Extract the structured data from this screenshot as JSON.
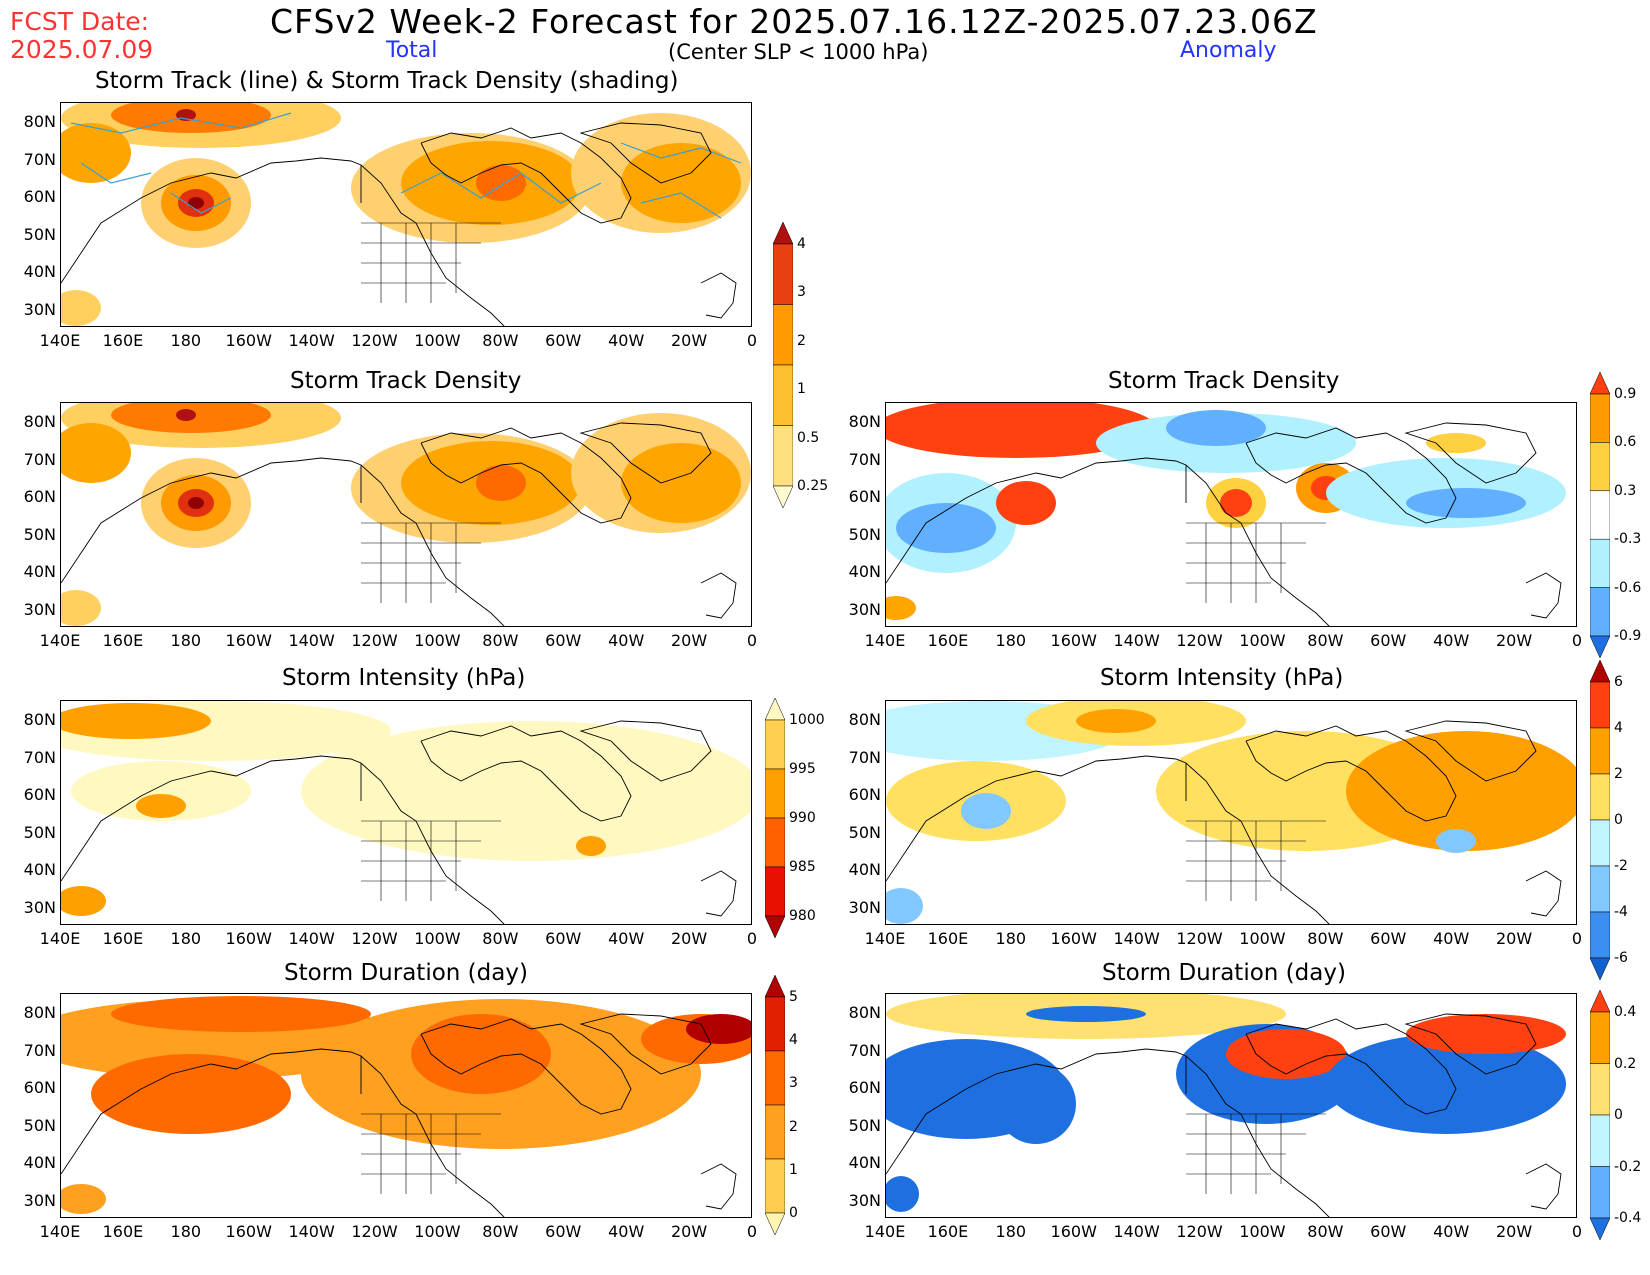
{
  "header": {
    "fcst_label": "FCST Date:",
    "fcst_date": "2025.07.09",
    "title": "CFSv2 Week-2 Forecast for 2025.07.16.12Z-2025.07.23.06Z",
    "col_total": "Total",
    "col_anomaly": "Anomaly",
    "criterion": "(Center SLP < 1000 hPa)"
  },
  "lat_ticks": [
    "80N",
    "70N",
    "60N",
    "50N",
    "40N",
    "30N"
  ],
  "lon_ticks": [
    "140E",
    "160E",
    "180",
    "160W",
    "140W",
    "120W",
    "100W",
    "80W",
    "60W",
    "40W",
    "20W",
    "0"
  ],
  "panels": [
    {
      "id": "p1",
      "title": "Storm Track (line) & Storm Track Density (shading)",
      "field": "total-density",
      "tracks": true
    },
    {
      "id": "p2",
      "title": "Storm Track Density",
      "field": "total-density"
    },
    {
      "id": "p3",
      "title": "Storm Track Density",
      "field": "anom-density"
    },
    {
      "id": "p4",
      "title": "Storm Intensity (hPa)",
      "field": "total-intensity"
    },
    {
      "id": "p5",
      "title": "Storm Intensity (hPa)",
      "field": "anom-intensity"
    },
    {
      "id": "p6",
      "title": "Storm Duration (day)",
      "field": "total-duration"
    },
    {
      "id": "p7",
      "title": "Storm Duration (day)",
      "field": "anom-duration"
    }
  ],
  "colorbars": [
    {
      "id": "cb1",
      "labels": [
        "4",
        "3",
        "2",
        "1",
        "0.5",
        "0.25"
      ],
      "colors": [
        "#b01010",
        "#e84010",
        "#ff9a00",
        "#ffc030",
        "#ffe080",
        "#fffad0"
      ]
    },
    {
      "id": "cb2",
      "labels": [
        "0.9",
        "0.6",
        "0.3",
        "-0.3",
        "-0.6",
        "-0.9"
      ],
      "colors": [
        "#ff4010",
        "#ff9a00",
        "#ffd040",
        "#ffffff",
        "#b0f0ff",
        "#60b0ff",
        "#1e70e0"
      ]
    },
    {
      "id": "cb3",
      "labels": [
        "1000",
        "995",
        "990",
        "985",
        "980"
      ],
      "colors": [
        "#fff8c0",
        "#ffd050",
        "#ffa000",
        "#ff6000",
        "#e81000",
        "#b00000"
      ]
    },
    {
      "id": "cb4",
      "labels": [
        "6",
        "4",
        "2",
        "0",
        "-2",
        "-4",
        "-6"
      ],
      "colors": [
        "#b00000",
        "#ff4010",
        "#ffa000",
        "#ffe060",
        "#c0f4ff",
        "#80c8ff",
        "#3c8ef0",
        "#1060d0"
      ]
    },
    {
      "id": "cb5",
      "labels": [
        "5",
        "4",
        "3",
        "2",
        "1",
        "0"
      ],
      "colors": [
        "#b00000",
        "#e02000",
        "#ff6a00",
        "#ffa020",
        "#ffcc50",
        "#fff4b0"
      ]
    },
    {
      "id": "cb6",
      "labels": [
        "0.4",
        "0.2",
        "0",
        "-0.2",
        "-0.4"
      ],
      "colors": [
        "#ff4010",
        "#ffa000",
        "#ffe070",
        "#c0f4ff",
        "#60b0ff",
        "#1e70e0"
      ]
    }
  ]
}
